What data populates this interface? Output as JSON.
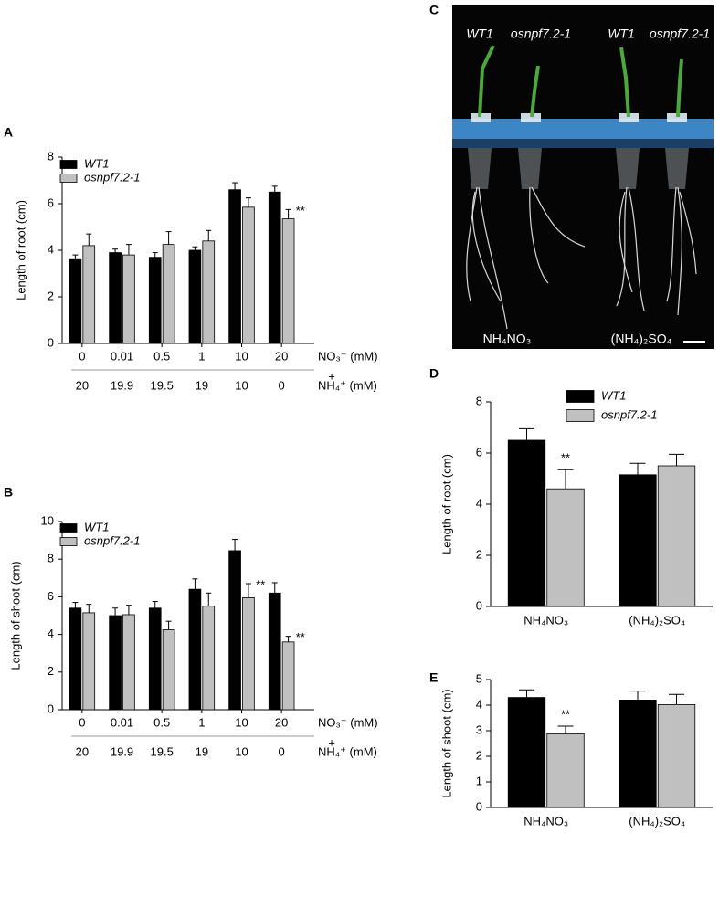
{
  "chart_data": [
    {
      "type": "bar",
      "panel": "A",
      "y_label": "Length of root (cm)",
      "categories": [
        "0",
        "0.01",
        "0.5",
        "1",
        "10",
        "20"
      ],
      "categories2": [
        "20",
        "19.9",
        "19.5",
        "19",
        "10",
        "0"
      ],
      "x_label": "NO₃⁻ (mM)",
      "x_joiner": "+",
      "x_label2": "NH₄⁺ (mM)",
      "series": [
        {
          "name": "WT1",
          "color": "#000000",
          "values": [
            3.6,
            3.9,
            3.7,
            4.0,
            6.6,
            6.5
          ],
          "errors": [
            0.2,
            0.15,
            0.2,
            0.15,
            0.3,
            0.25
          ],
          "significance": [
            null,
            null,
            null,
            null,
            null,
            null
          ]
        },
        {
          "name": "osnpf7.2-1",
          "color": "#c0c0c0",
          "values": [
            4.2,
            3.8,
            4.25,
            4.4,
            5.85,
            5.35
          ],
          "errors": [
            0.5,
            0.45,
            0.55,
            0.45,
            0.4,
            0.4
          ],
          "significance": [
            null,
            null,
            null,
            null,
            null,
            "**"
          ]
        }
      ],
      "ylim": [
        0,
        8
      ],
      "yticks": [
        0,
        2,
        4,
        6,
        8
      ]
    },
    {
      "type": "bar",
      "panel": "B",
      "y_label": "Length of shoot (cm)",
      "categories": [
        "0",
        "0.01",
        "0.5",
        "1",
        "10",
        "20"
      ],
      "categories2": [
        "20",
        "19.9",
        "19.5",
        "19",
        "10",
        "0"
      ],
      "x_label": "NO₃⁻ (mM)",
      "x_joiner": "+",
      "x_label2": "NH₄⁺ (mM)",
      "series": [
        {
          "name": "WT1",
          "color": "#000000",
          "values": [
            5.4,
            5.0,
            5.4,
            6.4,
            8.45,
            6.2
          ],
          "errors": [
            0.3,
            0.4,
            0.35,
            0.55,
            0.6,
            0.55
          ],
          "significance": [
            null,
            null,
            null,
            null,
            null,
            null
          ]
        },
        {
          "name": "osnpf7.2-1",
          "color": "#c0c0c0",
          "values": [
            5.15,
            5.05,
            4.25,
            5.5,
            5.95,
            3.6
          ],
          "errors": [
            0.45,
            0.5,
            0.45,
            0.7,
            0.75,
            0.3
          ],
          "significance": [
            null,
            null,
            null,
            null,
            "**",
            "**"
          ]
        }
      ],
      "ylim": [
        0,
        10
      ],
      "yticks": [
        0,
        2,
        4,
        6,
        8,
        10
      ]
    },
    {
      "type": "bar",
      "panel": "D",
      "y_label": "Length of root (cm)",
      "categories": [
        "NH₄NO₃",
        "(NH₄)₂SO₄"
      ],
      "series": [
        {
          "name": "WT1",
          "color": "#000000",
          "values": [
            6.5,
            5.15
          ],
          "errors": [
            0.45,
            0.45
          ],
          "significance": [
            null,
            null
          ]
        },
        {
          "name": "osnpf7.2-1",
          "color": "#c0c0c0",
          "values": [
            4.6,
            5.5
          ],
          "errors": [
            0.75,
            0.45
          ],
          "significance": [
            "**",
            null
          ]
        }
      ],
      "ylim": [
        0,
        8
      ],
      "yticks": [
        0,
        2,
        4,
        6,
        8
      ]
    },
    {
      "type": "bar",
      "panel": "E",
      "y_label": "Length of shoot (cm)",
      "categories": [
        "NH₄NO₃",
        "(NH₄)₂SO₄"
      ],
      "series": [
        {
          "name": "WT1",
          "color": "#000000",
          "values": [
            4.3,
            4.2
          ],
          "errors": [
            0.3,
            0.35
          ],
          "significance": [
            null,
            null
          ]
        },
        {
          "name": "osnpf7.2-1",
          "color": "#c0c0c0",
          "values": [
            2.88,
            4.02
          ],
          "errors": [
            0.3,
            0.4
          ],
          "significance": [
            "**",
            null
          ]
        }
      ],
      "ylim": [
        0,
        5
      ],
      "yticks": [
        0,
        1,
        2,
        3,
        4,
        5
      ]
    }
  ],
  "photo": {
    "panel": "C",
    "genotypes": [
      "WT1",
      "osnpf7.2-1",
      "WT1",
      "osnpf7.2-1"
    ],
    "treatments": [
      "NH₄NO₃",
      "(NH₄)₂SO₄"
    ]
  }
}
